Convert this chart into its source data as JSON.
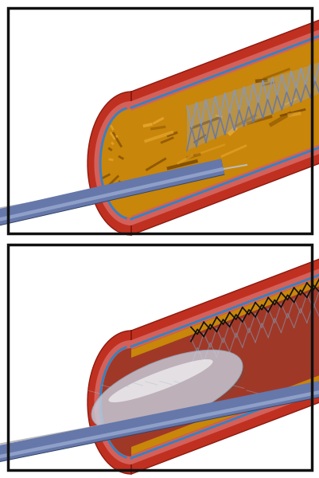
{
  "bg_color": "#ffffff",
  "border_color": "#111111",
  "artery_outer": "#c03020",
  "artery_mid": "#d4605a",
  "artery_inner_pink": "#e09088",
  "artery_lumen": "#9b3028",
  "plaque_gold": "#c8860a",
  "plaque_dark": "#7a4800",
  "plaque_light": "#e8a830",
  "blue_line": "#2288cc",
  "stent1_color": "#8899cc",
  "stent2_color": "#222222",
  "catheter_main": "#6677aa",
  "catheter_hi": "#aabbdd",
  "catheter_dark": "#334466",
  "wire_color": "#bbbbbb",
  "balloon_fill": "#d8e8f0",
  "balloon_hi": "#ffffff"
}
